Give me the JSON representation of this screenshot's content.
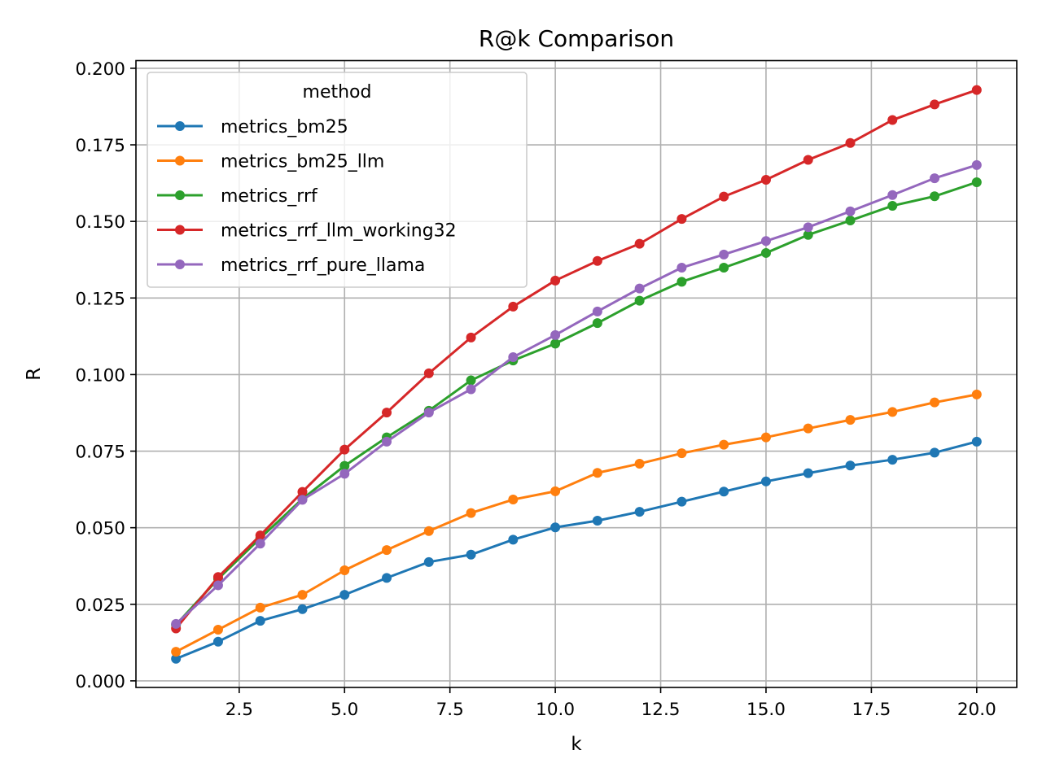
{
  "chart_data": {
    "type": "line",
    "title": "R@k Comparison",
    "xlabel": "k",
    "ylabel": "R",
    "xlim": [
      0.05,
      20.95
    ],
    "ylim": [
      -0.00215,
      0.2025
    ],
    "xticks": [
      2.5,
      5.0,
      7.5,
      10.0,
      12.5,
      15.0,
      17.5,
      20.0
    ],
    "xtick_labels": [
      "2.5",
      "5.0",
      "7.5",
      "10.0",
      "12.5",
      "15.0",
      "17.5",
      "20.0"
    ],
    "yticks": [
      0.0,
      0.025,
      0.05,
      0.075,
      0.1,
      0.125,
      0.15,
      0.175,
      0.2
    ],
    "ytick_labels": [
      "0.000",
      "0.025",
      "0.050",
      "0.075",
      "0.100",
      "0.125",
      "0.150",
      "0.175",
      "0.200"
    ],
    "grid": true,
    "legend": {
      "title": "method",
      "position": "upper-left"
    },
    "x": [
      1,
      2,
      3,
      4,
      5,
      6,
      7,
      8,
      9,
      10,
      11,
      12,
      13,
      14,
      15,
      16,
      17,
      18,
      19,
      20
    ],
    "series": [
      {
        "name": "metrics_bm25",
        "color": "#1f77b4",
        "values": [
          0.0072,
          0.0128,
          0.0196,
          0.0234,
          0.0281,
          0.0336,
          0.0388,
          0.0412,
          0.0461,
          0.0501,
          0.0523,
          0.0552,
          0.0585,
          0.0618,
          0.0651,
          0.0678,
          0.0703,
          0.0722,
          0.0745,
          0.0781
        ]
      },
      {
        "name": "metrics_bm25_llm",
        "color": "#ff7f0e",
        "values": [
          0.0095,
          0.0167,
          0.0239,
          0.0281,
          0.0361,
          0.0427,
          0.0489,
          0.0548,
          0.0592,
          0.0619,
          0.0679,
          0.0709,
          0.0743,
          0.0771,
          0.0795,
          0.0824,
          0.0852,
          0.0878,
          0.0909,
          0.0935
        ]
      },
      {
        "name": "metrics_rrf",
        "color": "#2ca02c",
        "values": [
          0.0183,
          0.0333,
          0.0466,
          0.0594,
          0.0702,
          0.0795,
          0.0882,
          0.0981,
          0.1046,
          0.1101,
          0.1168,
          0.1241,
          0.1303,
          0.1349,
          0.1397,
          0.1456,
          0.1503,
          0.1551,
          0.1582,
          0.1628
        ]
      },
      {
        "name": "metrics_rrf_llm_working32",
        "color": "#d62728",
        "values": [
          0.0171,
          0.0339,
          0.0475,
          0.0617,
          0.0755,
          0.0876,
          0.1004,
          0.1121,
          0.1222,
          0.1307,
          0.1371,
          0.1427,
          0.1508,
          0.1581,
          0.1636,
          0.1701,
          0.1756,
          0.1831,
          0.1882,
          0.1929
        ]
      },
      {
        "name": "metrics_rrf_pure_llama",
        "color": "#9467bd",
        "values": [
          0.0186,
          0.0312,
          0.0448,
          0.0591,
          0.0676,
          0.0781,
          0.0876,
          0.0952,
          0.1057,
          0.1129,
          0.1206,
          0.1281,
          0.1349,
          0.1392,
          0.1436,
          0.1481,
          0.1533,
          0.1586,
          0.1641,
          0.1684
        ]
      }
    ]
  }
}
